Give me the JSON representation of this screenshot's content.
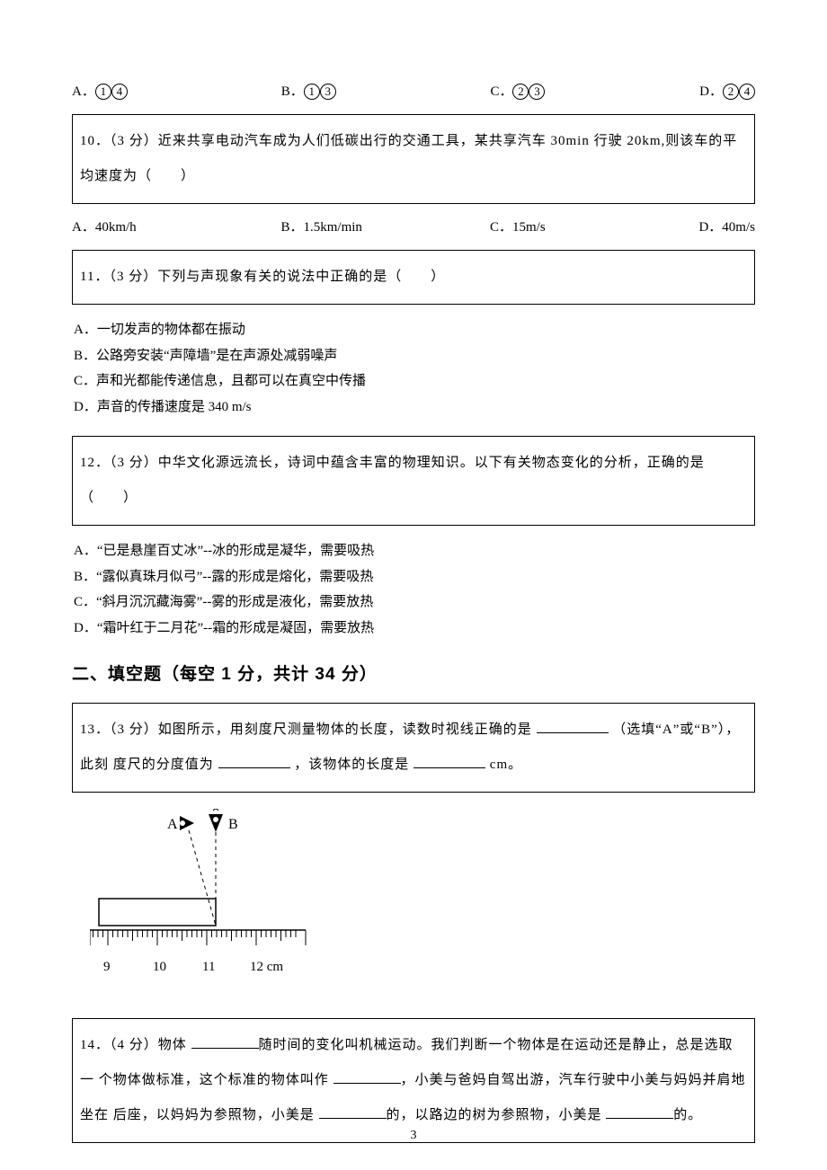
{
  "q9_options": {
    "A": "①④",
    "B": "①③",
    "C": "②③",
    "D": "②④"
  },
  "q10": {
    "stem": "10．（3 分）近来共享电动汽车成为人们低碳出行的交通工具，某共享汽车 30min 行驶 20km,则该车的平均速度为（　　）",
    "opts": {
      "A": "40km/h",
      "B": "1.5km/min",
      "C": "15m/s",
      "D": "40m/s"
    }
  },
  "q11": {
    "stem": "11．（3 分）下列与声现象有关的说法中正确的是（　　）",
    "opts": {
      "A": "A．一切发声的物体都在振动",
      "B": "B．公路旁安装“声障墙”是在声源处减弱噪声",
      "C": "C．声和光都能传递信息，且都可以在真空中传播",
      "D": "D．声音的传播速度是 340 m/s"
    }
  },
  "q12": {
    "stem": "12．（3 分）中华文化源远流长，诗词中蕴含丰富的物理知识。以下有关物态变化的分析，正确的是（　　）",
    "opts": {
      "A": "A．“已是悬崖百丈冰”--冰的形成是凝华，需要吸热",
      "B": "B．“露似真珠月似弓”--露的形成是熔化，需要吸热",
      "C": "C．“斜月沉沉藏海雾”--雾的形成是液化，需要放热",
      "D": "D．“霜叶红于二月花”--霜的形成是凝固，需要放热"
    }
  },
  "section2_heading": "二、填空题（每空 1 分，共计 34 分）",
  "q13": {
    "part1": "13．（3 分）如图所示，用刻度尺测量物体的长度，读数时视线正确的是 ",
    "part2": "（选填“A”或“B”），此刻",
    "part3": "度尺的分度值为 ",
    "part4": "，该物体的长度是 ",
    "part5": " cm。"
  },
  "q14": {
    "part1": "14．（4 分）物体 ",
    "part2": "随时间的变化叫机械运动。我们判断一个物体是在运动还是静止，总是选取一",
    "part3": "个物体做标准，这个标准的物体叫作 ",
    "part4": "，小美与爸妈自驾出游，汽车行驶中小美与妈妈并肩地坐在",
    "part5": "后座，以妈妈为参照物，小美是 ",
    "part6": "的，以路边的树为参照物，小美是 ",
    "part7": "的。"
  },
  "ruler": {
    "labels": {
      "A": "A",
      "B": "B"
    },
    "ticks": [
      "9",
      "10",
      "11",
      "12 cm"
    ]
  },
  "page_number": "3"
}
